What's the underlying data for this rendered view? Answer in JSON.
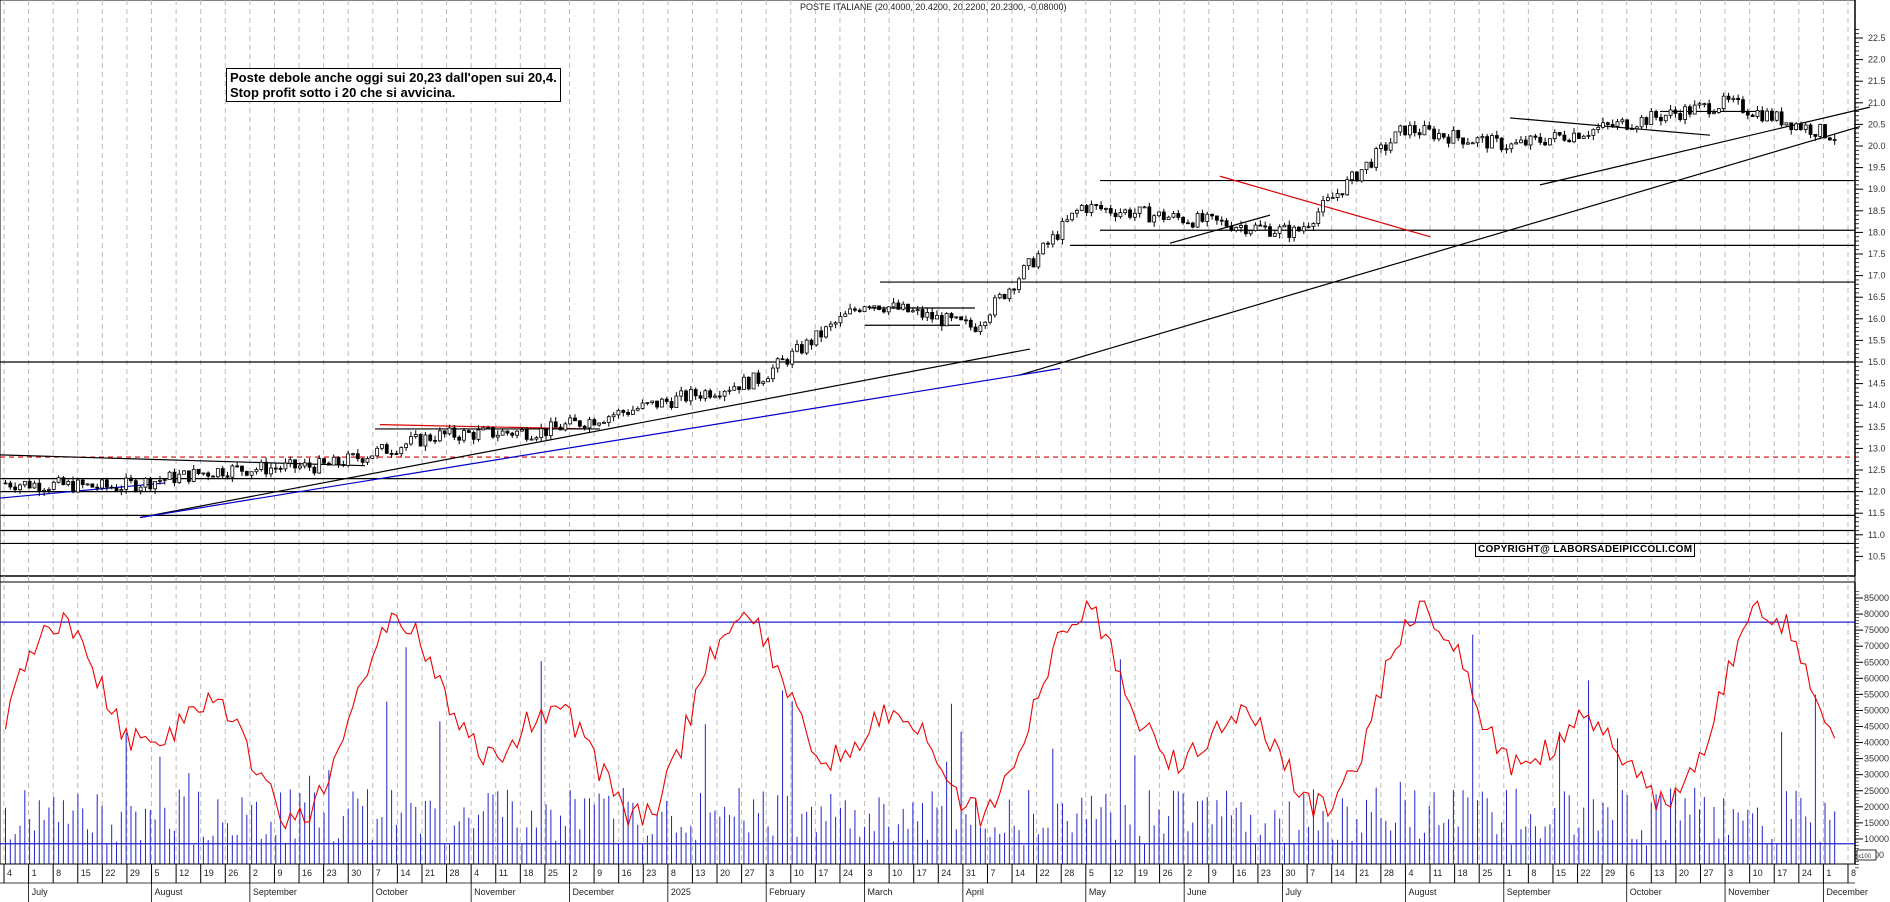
{
  "header": {
    "title": "POSTE ITALIANE (20.4000, 20.4200, 20.2200, 20.2300, -0.08000)"
  },
  "annotations": {
    "note_line1": "Poste debole anche oggi sui 20,23 dall'open sui 20,4.",
    "note_line2": "Stop profit sotto i 20 che si avvicina.",
    "copyright": "COPYRIGHT@ LABORSADEIPICCOLI.COM"
  },
  "colors": {
    "candles": "#000000",
    "trendline_black": "#000000",
    "trendline_blue": "#0000cc",
    "trendline_red": "#dd0000",
    "oscillator": "#ee0000",
    "volume_bars": "#2222cc",
    "grid": "#bbbbbb"
  },
  "chart_data": {
    "type": "candlestick",
    "title": "POSTE ITALIANE (20.4000, 20.4200, 20.2200, 20.2300, -0.08000)",
    "last_bar": {
      "open": 20.4,
      "high": 20.42,
      "low": 20.22,
      "close": 20.23,
      "change": -0.08
    },
    "price_axis": {
      "ticks": [
        "22.5",
        "22.0",
        "21.5",
        "21.0",
        "20.5",
        "20.0",
        "19.5",
        "19.0",
        "18.5",
        "18.0",
        "17.5",
        "17.0",
        "16.5",
        "16.0",
        "15.5",
        "15.0",
        "14.5",
        "14.0",
        "13.5",
        "13.0",
        "12.5",
        "12.0",
        "11.5",
        "11.0",
        "10.5"
      ],
      "range": [
        10.3,
        22.9
      ]
    },
    "volume_axis": {
      "ticks": [
        "85000",
        "80000",
        "75000",
        "70000",
        "65000",
        "60000",
        "55000",
        "50000",
        "45000",
        "40000",
        "35000",
        "30000",
        "25000",
        "20000",
        "15000",
        "10000",
        "5000"
      ],
      "multiplier_label": "x100",
      "range": [
        0,
        88000
      ]
    },
    "horizontal_levels": [
      19.2,
      18.05,
      17.7,
      16.85,
      15.0,
      12.3,
      12.0,
      11.45,
      11.1,
      10.8
    ],
    "dashed_level": 12.8,
    "volume_reference_lines": [
      77500,
      8500
    ],
    "x_axis": {
      "day_ticks": [
        "4",
        "1",
        "8",
        "15",
        "22",
        "29",
        "5",
        "12",
        "19",
        "26",
        "2",
        "9",
        "16",
        "23",
        "30",
        "7",
        "14",
        "21",
        "28",
        "4",
        "11",
        "18",
        "25",
        "2",
        "9",
        "16",
        "23",
        "8",
        "13",
        "20",
        "27",
        "3",
        "10",
        "17",
        "24",
        "3",
        "10",
        "17",
        "24",
        "31",
        "7",
        "14",
        "22",
        "28",
        "5",
        "12",
        "19",
        "26",
        "2",
        "9",
        "16",
        "23",
        "30",
        "7",
        "14",
        "21",
        "28",
        "4",
        "11",
        "18",
        "25",
        "1",
        "8",
        "15",
        "22",
        "29",
        "6",
        "13",
        "20",
        "27",
        "3",
        "10",
        "17",
        "24",
        "1",
        "8"
      ],
      "month_labels": [
        "July",
        "August",
        "September",
        "October",
        "November",
        "December",
        "2025",
        "February",
        "March",
        "April",
        "May",
        "June",
        "July",
        "August",
        "September",
        "October",
        "November",
        "December"
      ]
    },
    "price_series_approx": {
      "x_months": [
        "Jul-24",
        "Aug-24",
        "Sep-24",
        "Oct-24",
        "Nov-24",
        "Dec-24",
        "Jan-25",
        "Feb-25",
        "Mar-25",
        "Apr-25",
        "May-25",
        "Jun-25",
        "Jul-25",
        "Aug-25",
        "Sep-25",
        "Oct-25",
        "Nov-25",
        "Dec-25"
      ],
      "close": [
        12.2,
        12.1,
        12.5,
        12.6,
        13.3,
        13.4,
        14.0,
        14.6,
        16.4,
        15.8,
        18.6,
        18.3,
        18.0,
        20.4,
        20.0,
        20.5,
        21.0,
        20.23
      ]
    },
    "volume_series_approx": {
      "oscillator_range": [
        8000,
        84000
      ],
      "note": "red oscillator line oscillates between ~10000 and ~84000; blue volume bars mostly 10000-30000 with spikes to ~82000 in early April 2025"
    }
  }
}
